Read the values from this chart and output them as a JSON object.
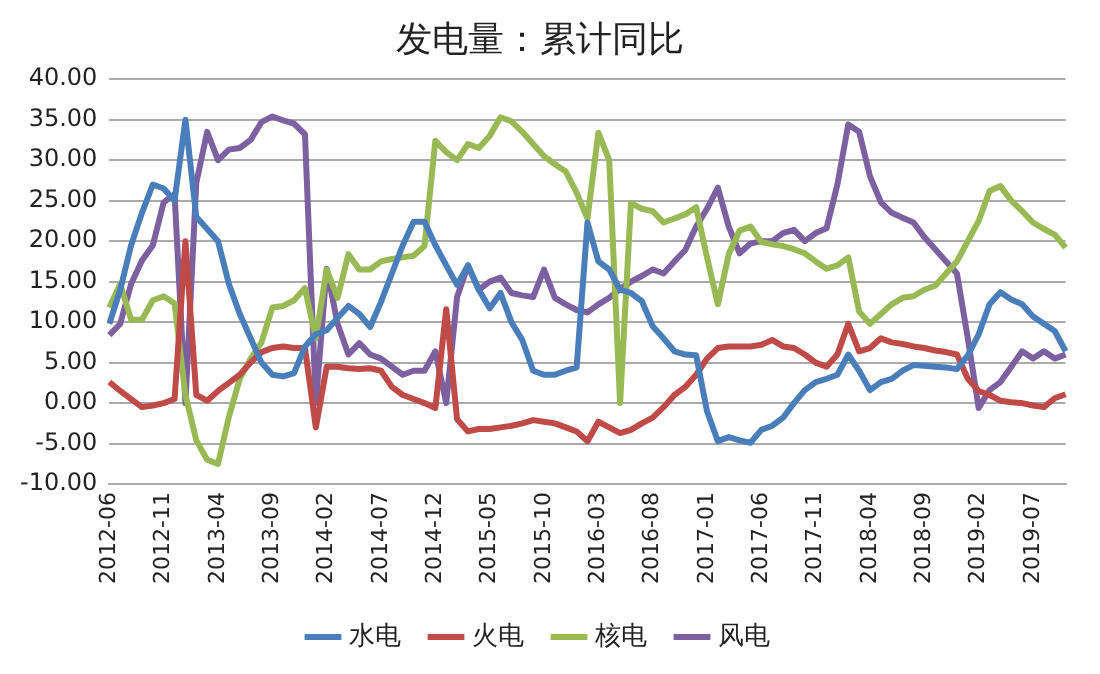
{
  "chart_data": {
    "type": "line",
    "title": "发电量：累计同比",
    "categories": [
      "2012-06",
      null,
      null,
      null,
      null,
      "2012-11",
      null,
      null,
      null,
      null,
      "2013-04",
      null,
      null,
      null,
      null,
      "2013-09",
      null,
      null,
      null,
      null,
      "2014-02",
      null,
      null,
      null,
      null,
      "2014-07",
      null,
      null,
      null,
      null,
      "2014-12",
      null,
      null,
      null,
      null,
      "2015-05",
      null,
      null,
      null,
      null,
      "2015-10",
      null,
      null,
      null,
      null,
      "2016-03",
      null,
      null,
      null,
      null,
      "2016-08",
      null,
      null,
      null,
      null,
      "2017-01",
      null,
      null,
      null,
      null,
      "2017-06",
      null,
      null,
      null,
      null,
      "2017-11",
      null,
      null,
      null,
      null,
      "2018-04",
      null,
      null,
      null,
      null,
      "2018-09",
      null,
      null,
      null,
      null,
      "2019-02",
      null,
      null,
      null,
      null,
      "2019-07",
      null,
      null,
      null
    ],
    "series": [
      {
        "name": "水电",
        "color": "#4a7ebb",
        "values": [
          9.8,
          14,
          19.5,
          23.5,
          27,
          26.5,
          25,
          35,
          23,
          21.5,
          20,
          14.7,
          11,
          8,
          5,
          3.5,
          3.3,
          3.7,
          7,
          8.5,
          9,
          10.5,
          12,
          11,
          9.4,
          12.5,
          16,
          19.5,
          22.4,
          22.4,
          19.5,
          17,
          14.6,
          17,
          14,
          11.7,
          13.6,
          10,
          7.8,
          4,
          3.5,
          3.5,
          4,
          4.4,
          22.3,
          17.5,
          16.5,
          14,
          13.6,
          12.6,
          9.5,
          8,
          6.4,
          6,
          5.9,
          -1,
          -4.7,
          -4.2,
          -4.6,
          -4.9,
          -3.3,
          -2.8,
          -1.8,
          0,
          1.6,
          2.6,
          3,
          3.5,
          6,
          4,
          1.6,
          2.6,
          3,
          4,
          4.7,
          4.6,
          4.5,
          4.4,
          4.2,
          5.9,
          8.5,
          12.2,
          13.7,
          12.8,
          12.2,
          10.7,
          9.8,
          8.9,
          6.4
        ]
      },
      {
        "name": "火电",
        "color": "#be4b48",
        "values": [
          2.6,
          1.5,
          0.5,
          -0.5,
          -0.3,
          0,
          0.5,
          20,
          1,
          0.3,
          1.5,
          2.5,
          3.5,
          5,
          6.3,
          6.8,
          7,
          6.8,
          6.8,
          -3,
          4.5,
          4.5,
          4.3,
          4.2,
          4.3,
          4,
          2,
          1,
          0.5,
          0,
          -0.6,
          11.6,
          -2,
          -3.5,
          -3.2,
          -3.2,
          -3,
          -2.8,
          -2.5,
          -2.1,
          -2.3,
          -2.5,
          -3,
          -3.5,
          -4.7,
          -2.3,
          -3,
          -3.7,
          -3.3,
          -2.5,
          -1.8,
          -0.5,
          1,
          2,
          3.5,
          5.5,
          6.8,
          7,
          7,
          7,
          7.2,
          7.8,
          7,
          6.8,
          6,
          5,
          4.5,
          6,
          9.8,
          6.4,
          6.8,
          8,
          7.5,
          7.3,
          7,
          6.8,
          6.5,
          6.3,
          6,
          3,
          1.5,
          1,
          0.3,
          0.1,
          0,
          -0.3,
          -0.5,
          0.6,
          1.1
        ]
      },
      {
        "name": "核电",
        "color": "#98b954",
        "values": [
          11.8,
          14.7,
          10.3,
          10.3,
          12.7,
          13.2,
          12.3,
          1,
          -4.6,
          -7,
          -7.5,
          -1.7,
          3,
          5.5,
          7.5,
          11.8,
          12,
          12.7,
          14.2,
          8,
          16.5,
          13,
          18.4,
          16.5,
          16.5,
          17.5,
          17.8,
          18,
          18.2,
          19.4,
          32.4,
          31,
          30,
          32,
          31.5,
          33,
          35.3,
          34.8,
          33.5,
          32,
          30.5,
          29.5,
          28.6,
          26,
          22.8,
          33.4,
          30,
          0,
          24.7,
          24,
          23.7,
          22.3,
          22.8,
          23.3,
          24.2,
          18,
          12.2,
          18.4,
          21.3,
          21.8,
          19.9,
          19.6,
          19.4,
          19,
          18.5,
          17.5,
          16.6,
          17,
          18,
          11.3,
          9.8,
          11,
          12.2,
          13,
          13.2,
          14,
          14.5,
          16,
          17.5,
          20,
          22.5,
          26.2,
          26.8,
          25,
          23.7,
          22.3,
          21.5,
          20.8,
          19.2
        ]
      },
      {
        "name": "风电",
        "color": "#7d60a0",
        "values": [
          8.4,
          9.8,
          14.7,
          17.6,
          19.5,
          24.8,
          25.8,
          0,
          27.2,
          33.5,
          30,
          31.3,
          31.5,
          32.5,
          34.7,
          35.4,
          34.9,
          34.5,
          33.2,
          0,
          16.6,
          9.8,
          6,
          7.4,
          6,
          5.5,
          4.5,
          3.5,
          4,
          4,
          6.4,
          0,
          13.1,
          17,
          14,
          15,
          15.5,
          13.6,
          13.3,
          13.1,
          16.5,
          13,
          12.2,
          11.5,
          11.2,
          12.2,
          13,
          14.1,
          15,
          15.7,
          16.5,
          16,
          17.5,
          18.9,
          21.8,
          24,
          26.6,
          21.8,
          18.5,
          19.7,
          20,
          20,
          21,
          21.4,
          20,
          21,
          21.6,
          27,
          34.4,
          33.5,
          28,
          24.8,
          23.5,
          22.9,
          22.3,
          20.5,
          19,
          17.5,
          16,
          8,
          -0.6,
          1.6,
          2.6,
          4.5,
          6.4,
          5.5,
          6.4,
          5.5,
          6
        ]
      }
    ],
    "ylim": [
      -10,
      40
    ],
    "yticks": [
      {
        "value": -10,
        "label": "-10.00"
      },
      {
        "value": -5,
        "label": "-5.00"
      },
      {
        "value": 0,
        "label": "0.00"
      },
      {
        "value": 5,
        "label": "5.00"
      },
      {
        "value": 10,
        "label": "10.00"
      },
      {
        "value": 15,
        "label": "15.00"
      },
      {
        "value": 20,
        "label": "20.00"
      },
      {
        "value": 25,
        "label": "25.00"
      },
      {
        "value": 30,
        "label": "30.00"
      },
      {
        "value": 35,
        "label": "35.00"
      },
      {
        "value": 40,
        "label": "40.00"
      }
    ],
    "grid": "y",
    "legend": "bottom",
    "marker": "none",
    "line_style": "solid"
  }
}
